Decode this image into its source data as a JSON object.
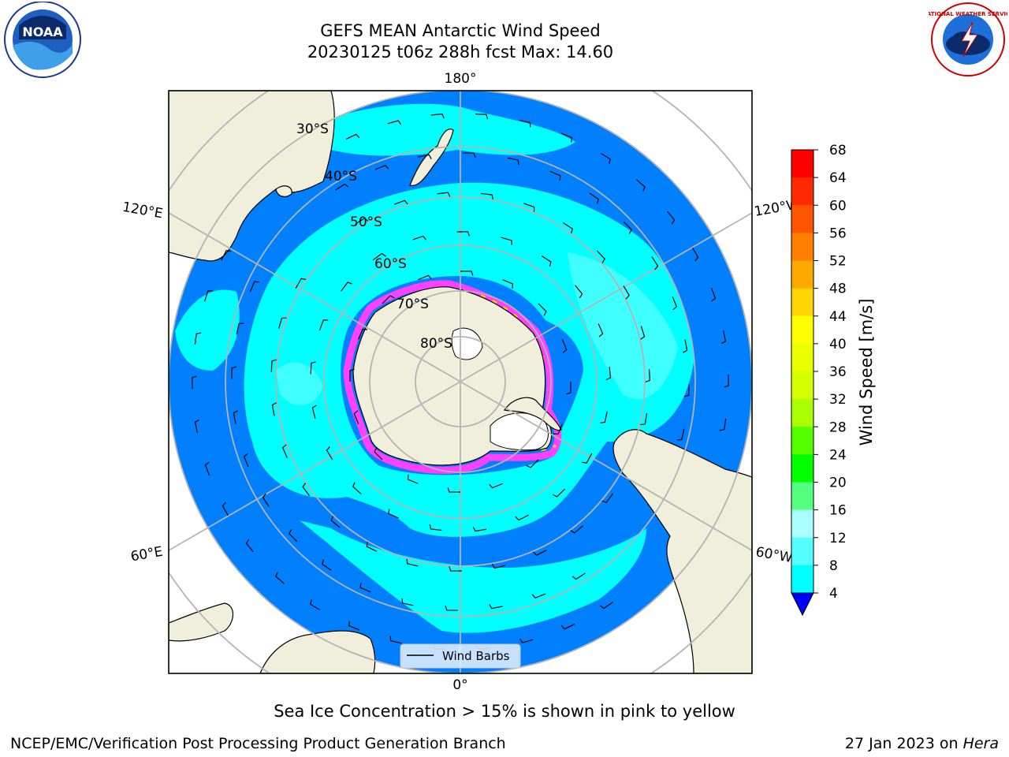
{
  "header": {
    "title_line1": "GEFS MEAN Antarctic Wind Speed",
    "title_line2": "20230125 t06z 288h fcst   Max: 14.60"
  },
  "logos": {
    "left": {
      "icon": "noaa-logo",
      "text": "NOAA"
    },
    "right": {
      "icon": "national-weather-service-logo",
      "text": "NATIONAL WEATHER SERVICE"
    }
  },
  "map": {
    "projection": "south-polar-stereographic",
    "longitude_labels": {
      "top": "180°",
      "bottom": "0°",
      "left_upper": "120°E",
      "left_lower": "60°E",
      "right_upper": "120°W",
      "right_lower": "60°W"
    },
    "latitude_labels": [
      "30°S",
      "40°S",
      "50°S",
      "60°S",
      "70°S",
      "80°S"
    ],
    "legend_label": "Wind Barbs",
    "colors": {
      "land": "#efefdc",
      "ocean_4_8": "#0080ff",
      "ocean_8_12": "#00ffff",
      "ocean_12_16": "#40ffff",
      "sea_ice": "#ff40ff",
      "grid": "#b4b4b4"
    }
  },
  "colorbar": {
    "label": "Wind Speed [m/s]",
    "ticks": [
      "68",
      "64",
      "60",
      "56",
      "52",
      "48",
      "44",
      "40",
      "36",
      "32",
      "28",
      "24",
      "20",
      "16",
      "12",
      "8",
      "4"
    ],
    "colors": [
      "#ff0000",
      "#ff2a00",
      "#ff5500",
      "#ff8000",
      "#ffaa00",
      "#ffd400",
      "#ffff00",
      "#eaff00",
      "#d4ff00",
      "#aaff00",
      "#55ff00",
      "#00ff00",
      "#55ff80",
      "#aaffff",
      "#55ffff",
      "#00ffff",
      "#0080ff"
    ],
    "extend_color": "#0000ff"
  },
  "footer": {
    "caption": "Sea Ice Concentration > 15% is shown in pink to yellow",
    "credit": "NCEP/EMC/Verification Post Processing Product Generation Branch",
    "date": "27 Jan 2023 on",
    "machine": "Hera"
  }
}
